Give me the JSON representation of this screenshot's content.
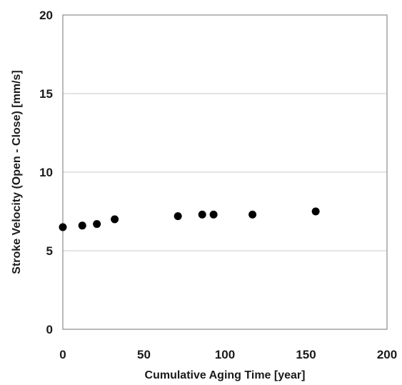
{
  "chart_data": {
    "type": "scatter",
    "xlabel": "Cumulative Aging Time [year]",
    "ylabel": "Stroke Velocity (Open - Close)  [mm/s]",
    "xlim": [
      0,
      200
    ],
    "ylim": [
      0,
      20
    ],
    "xticks": [
      "0",
      "50",
      "100",
      "150",
      "200"
    ],
    "yticks": [
      "0",
      "5",
      "10",
      "15",
      "20"
    ],
    "grid": "horizontal",
    "series": [
      {
        "color": "#000000",
        "points": [
          {
            "x": 0,
            "y": 6.5
          },
          {
            "x": 12,
            "y": 6.6
          },
          {
            "x": 21,
            "y": 6.7
          },
          {
            "x": 32,
            "y": 7.0
          },
          {
            "x": 71,
            "y": 7.2
          },
          {
            "x": 86,
            "y": 7.3
          },
          {
            "x": 93,
            "y": 7.3
          },
          {
            "x": 117,
            "y": 7.3
          },
          {
            "x": 156,
            "y": 7.5
          }
        ]
      }
    ]
  }
}
